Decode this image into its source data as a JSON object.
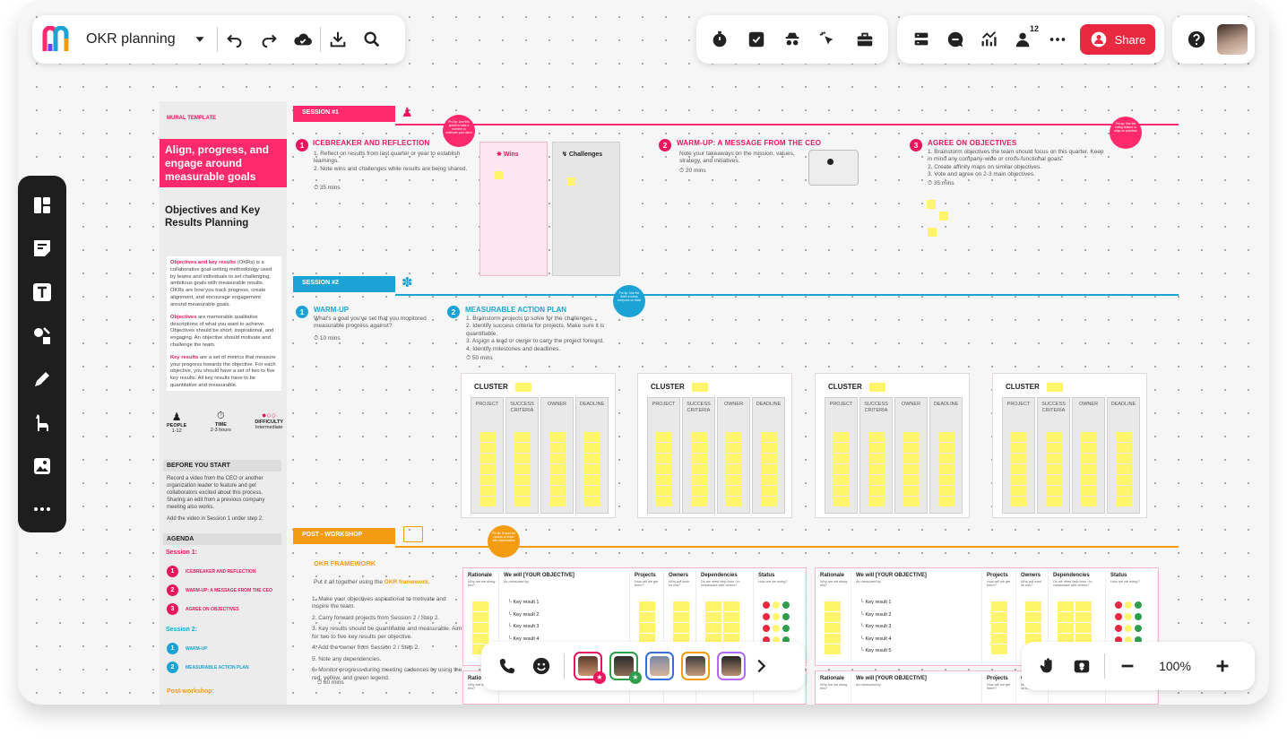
{
  "app": {
    "title": "OKR planning",
    "share_label": "Share",
    "notification_count": "12",
    "zoom": "100%"
  },
  "template": {
    "label": "MURAL TEMPLATE",
    "hero": "Align, progress, and engage around measurable goals",
    "title": "Objectives and Key Results Planning",
    "p1_key": "Objectives and key results",
    "p1": " (OKRs) is a collaborative goal-setting methodology used by teams and individuals to set challenging, ambitious goals with measurable results. OKRs are how you track progress, create alignment, and encourage engagement around measurable goals.",
    "p2_key": "Objectives",
    "p2": " are memorable qualitative descriptions of what you want to achieve. Objectives should be short, inspirational, and engaging. An objective should motivate and challenge the team.",
    "p3_key": "Key results",
    "p3": " are a set of metrics that measure your progress towards the objective. For each objective, you should have a set of two to five key results. All key results have to be quantitative and measurable.",
    "people_label": "PEOPLE",
    "people_val": "1-12",
    "time_label": "TIME",
    "time_val": "2-3 hours",
    "difficulty_label": "DIFFICULTY",
    "difficulty_val": "Intermediate",
    "before_title": "BEFORE YOU START",
    "before_text": "Record a video from the CEO or another organization leader to feature and get collaborators excited about this process. Sharing an edit from a previous company meeting also works.",
    "before_text2": "Add the video in Session 1 under step 2.",
    "agenda_title": "AGENDA",
    "session1": "Session 1:",
    "session2": "Session 2:",
    "post": "Post-workshop:",
    "agenda_items": [
      "ICEBREAKER AND REFLECTION",
      "WARM-UP: A MESSAGE FROM THE CEO",
      "AGREE ON OBJECTIVES"
    ],
    "agenda_items2": [
      "WARM-UP",
      "MEASURABLE ACTION PLAN"
    ]
  },
  "session1": {
    "label": "SESSION #1",
    "s1_title": "ICEBREAKER AND REFLECTION",
    "s1_text": "1. Reflect on results from last quarter or year to establish learnings.\n2. Note wins and challenges while results are being shared.",
    "s1_time": "35 mins",
    "wins": "Wins",
    "challenges": "Challenges",
    "s2_title": "WARM-UP: A MESSAGE FROM THE CEO",
    "s2_text": "Note your takeaways on the mission, values, strategy, and initiatives.",
    "s2_time": "20 mins",
    "s3_title": "AGREE ON OBJECTIVES",
    "s3_text": "1. Brainstorm objectives the team should focus on this quarter. Keep in mind any company-wide or cross-functional goals.\n2. Create affinity maps on similar objectives.\n3. Vote and agree on 2-3 main objectives.",
    "s3_time": "35 mins",
    "bubble1": "Pro tip: Use this space to take a moment to celebrate your wins!",
    "bubble2": "Pro tip: Use the voting feature to align on priorities"
  },
  "session2": {
    "label": "SESSION #2",
    "w_title": "WARM-UP",
    "w_text": "What's a goal you've set that you monitored measurable progress against?",
    "w_time": "10 mins",
    "m_title": "MEASURABLE ACTION PLAN",
    "m_text": "1. Brainstorm projects to solve for the challenges.\n2. Identify success criteria for projects. Make sure it is quantifiable.\n3. Assign a lead or owner to carry the project forward.\n4. Identify milestones and deadlines.",
    "m_time": "50 mins",
    "bubble": "Pro tip: Use the timer to keep everyone on track",
    "cluster": "CLUSTER",
    "cols": [
      "PROJECT",
      "SUCCESS CRITERIA",
      "OWNER",
      "DEADLINE"
    ]
  },
  "post": {
    "label": "POST - WORKSHOP",
    "bubble": "Pro tip: Export the canvas to share with stakeholders",
    "fw_title": "OKR FRAMEWORK",
    "fw_intro": "Put it all together using the ",
    "fw_intro_key": "OKR framework.",
    "fw_steps": [
      "1. Make your objectives aspirational to motivate and inspire the team.",
      "2. Carry forward projects from Session 2 / Step 2.",
      "3. Key results should be quantifiable and measurable. Aim for two to five key results per objective.",
      "4. Add the owner from Session 2 / Step 2.",
      "5. Note any dependencies.",
      "6. Monitor progress during meeting cadences by using the red, yellow, and green legend."
    ],
    "fw_time": "60 mins",
    "table": {
      "rationale": "Rationale",
      "rationale_sub": "Why are we doing this?",
      "objective": "We will [YOUR OBJECTIVE]",
      "measured": "As measured by:",
      "krs": [
        "Key result 1",
        "Key result 2",
        "Key result 3",
        "Key result 4",
        "Key result 5"
      ],
      "projects": "Projects",
      "projects_sub": "How will we get there?",
      "owners": "Owners",
      "owners_sub": "Who will work on this?",
      "deps": "Dependencies",
      "deps_sub": "Do we need help from / to collaborate with others?",
      "status": "Status",
      "status_sub": "How are we doing?"
    }
  },
  "colors": {
    "pink": "#e8175d",
    "blue": "#1aa3d4",
    "orange": "#f39c12",
    "yellow": "#fff56b"
  }
}
